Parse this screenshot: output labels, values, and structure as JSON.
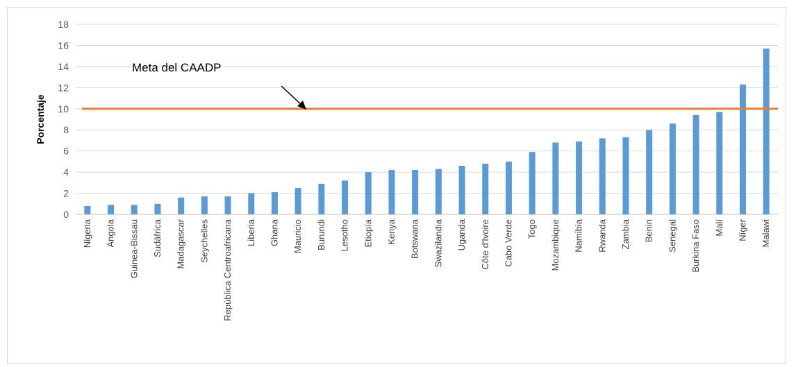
{
  "chart_data": {
    "type": "bar",
    "title": "",
    "xlabel": "",
    "ylabel": "Porcentaje",
    "ylim": [
      0,
      18
    ],
    "yticks": [
      "0",
      "2",
      "4",
      "6",
      "8",
      "10",
      "12",
      "14",
      "16",
      "18"
    ],
    "grid": true,
    "categories": [
      "Nigeria",
      "Angola",
      "Guinea-Bissau",
      "Sudáfrica",
      "Madagascar",
      "Seychelles",
      "República Centroafricana",
      "Liberia",
      "Ghana",
      "Mauricio",
      "Burundi",
      "Lesotho",
      "Etiopía",
      "Kenya",
      "Botswana",
      "Swazilandia",
      "Uganda",
      "Côte d'Ivoire",
      "Cabo Verde",
      "Togo",
      "Mozambique",
      "Namibia",
      "Rwanda",
      "Zambia",
      "Benin",
      "Senegal",
      "Burkina Faso",
      "Malí",
      "Níger",
      "Malawi"
    ],
    "values": [
      0.8,
      0.9,
      0.9,
      1.0,
      1.6,
      1.7,
      1.7,
      2.0,
      2.1,
      2.5,
      2.9,
      3.2,
      4.0,
      4.2,
      4.2,
      4.3,
      4.6,
      4.8,
      5.0,
      5.9,
      6.8,
      6.9,
      7.2,
      7.3,
      8.0,
      8.6,
      9.4,
      9.7,
      12.3,
      15.7
    ],
    "bar_color": "#5b9bd5",
    "target_line": {
      "value": 10,
      "label": "Meta del CAADP",
      "color": "#ed7d31"
    }
  }
}
